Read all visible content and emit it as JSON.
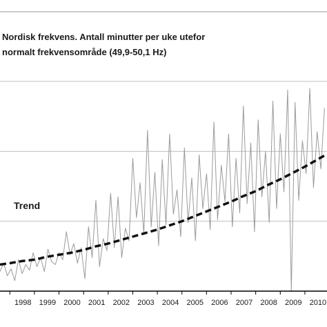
{
  "chart_data": {
    "type": "line",
    "title_lines": [
      "Nordisk frekvens. Antall minutter per uke utefor",
      "normalt frekvensområde (49,9-50,1 Hz)"
    ],
    "annotation": "Trend",
    "x_ticks": [
      "1998",
      "1999",
      "2000",
      "2001",
      "2002",
      "2003",
      "2004",
      "2005",
      "2006",
      "2007",
      "2008",
      "2009",
      "2010"
    ],
    "xlim": [
      1997.6,
      2010.9
    ],
    "ylim": [
      0,
      300
    ],
    "grid": true,
    "colors": {
      "data_line": "#9a9a9a",
      "trend_line": "#111111",
      "grid": "#bfbfbf",
      "axis": "#000000"
    },
    "series": [
      {
        "style": "solid-thin",
        "x": [
          1997.6,
          1997.75,
          1997.9,
          1998.05,
          1998.2,
          1998.35,
          1998.5,
          1998.65,
          1998.8,
          1998.95,
          1999.1,
          1999.25,
          1999.4,
          1999.55,
          1999.7,
          1999.85,
          2000.0,
          2000.15,
          2000.3,
          2000.45,
          2000.6,
          2000.75,
          2000.9,
          2001.05,
          2001.2,
          2001.35,
          2001.5,
          2001.65,
          2001.8,
          2001.95,
          2002.1,
          2002.25,
          2002.4,
          2002.55,
          2002.7,
          2002.85,
          2003.0,
          2003.15,
          2003.3,
          2003.45,
          2003.6,
          2003.75,
          2003.9,
          2004.05,
          2004.2,
          2004.35,
          2004.5,
          2004.65,
          2004.8,
          2004.95,
          2005.1,
          2005.25,
          2005.4,
          2005.55,
          2005.7,
          2005.85,
          2006.0,
          2006.15,
          2006.3,
          2006.45,
          2006.6,
          2006.75,
          2006.9,
          2007.05,
          2007.2,
          2007.35,
          2007.5,
          2007.65,
          2007.8,
          2007.95,
          2008.1,
          2008.25,
          2008.4,
          2008.55,
          2008.7,
          2008.85,
          2009.0,
          2009.15,
          2009.3,
          2009.45,
          2009.6,
          2009.75,
          2009.9,
          2010.05,
          2010.2,
          2010.35,
          2010.5,
          2010.65,
          2010.8
        ],
        "y": [
          28,
          40,
          22,
          32,
          15,
          45,
          25,
          38,
          30,
          55,
          35,
          48,
          28,
          60,
          42,
          38,
          55,
          45,
          85,
          52,
          68,
          40,
          62,
          18,
          92,
          48,
          130,
          35,
          75,
          58,
          140,
          62,
          135,
          48,
          90,
          72,
          190,
          105,
          155,
          82,
          230,
          92,
          170,
          65,
          188,
          95,
          225,
          110,
          145,
          78,
          205,
          98,
          162,
          72,
          195,
          118,
          168,
          88,
          242,
          102,
          180,
          128,
          225,
          92,
          190,
          112,
          265,
          125,
          212,
          85,
          245,
          135,
          200,
          98,
          272,
          118,
          225,
          142,
          288,
          0,
          270,
          130,
          215,
          168,
          290,
          148,
          228,
          175,
          262
        ]
      },
      {
        "name": "Trend",
        "style": "dashed-thick",
        "x": [
          1997.6,
          1998.0,
          1998.5,
          1999.0,
          1999.5,
          2000.0,
          2000.5,
          2001.0,
          2001.5,
          2002.0,
          2002.5,
          2003.0,
          2003.5,
          2004.0,
          2004.5,
          2005.0,
          2005.5,
          2006.0,
          2006.5,
          2007.0,
          2007.5,
          2008.0,
          2008.5,
          2009.0,
          2009.5,
          2010.0,
          2010.5,
          2010.9
        ],
        "y": [
          38,
          40,
          43,
          45,
          49,
          52,
          55,
          59,
          64,
          68,
          73,
          78,
          83,
          88,
          94,
          100,
          107,
          114,
          121,
          128,
          136,
          143,
          152,
          160,
          169,
          178,
          188,
          196
        ]
      }
    ]
  }
}
